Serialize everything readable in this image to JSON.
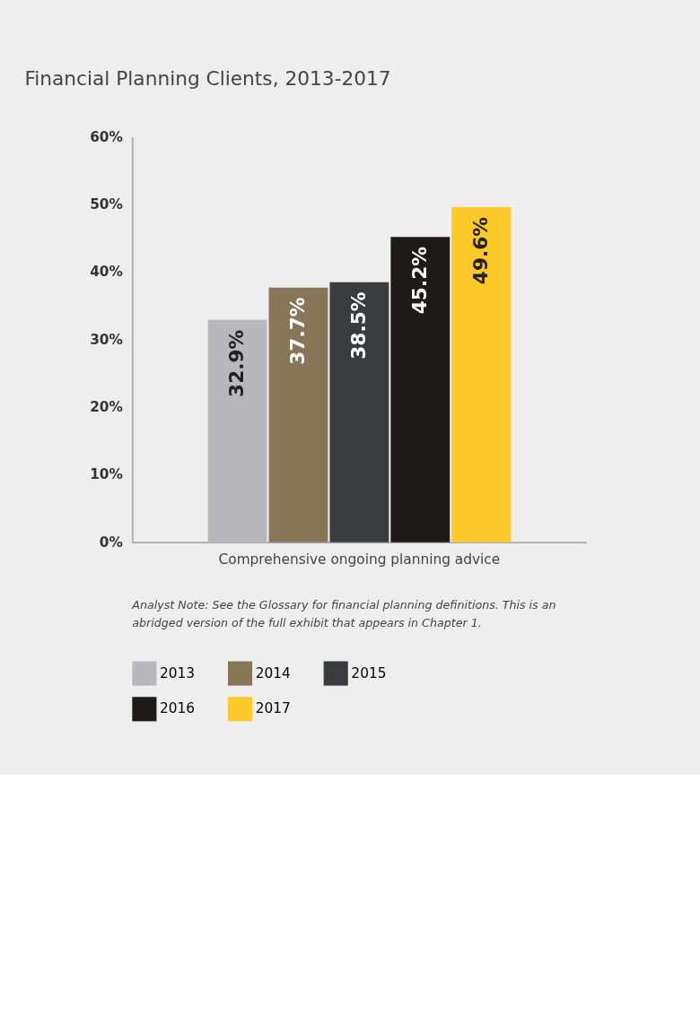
{
  "chart_data": {
    "type": "bar",
    "title": "Financial Planning Clients, 2013-2017",
    "categories": [
      "Comprehensive ongoing planning advice"
    ],
    "series": [
      {
        "name": "2013",
        "color": "#b8b7bb",
        "values": [
          32.9
        ],
        "value_labels": [
          "32.9%"
        ]
      },
      {
        "name": "2014",
        "color": "#877657",
        "values": [
          37.7
        ],
        "value_labels": [
          "37.7%"
        ]
      },
      {
        "name": "2015",
        "color": "#3a3b3e",
        "values": [
          38.5
        ],
        "value_labels": [
          "38.5%"
        ]
      },
      {
        "name": "2016",
        "color": "#1e1a1a",
        "values": [
          45.2
        ],
        "value_labels": [
          "45.2%"
        ]
      },
      {
        "name": "2017",
        "color": "#fdc829",
        "values": [
          49.6
        ],
        "value_labels": [
          "49.6%"
        ]
      }
    ],
    "ylim": [
      0,
      60
    ],
    "yticks": [
      {
        "value": 0,
        "label": "0%"
      },
      {
        "value": 10,
        "label": "10%"
      },
      {
        "value": 20,
        "label": "20%"
      },
      {
        "value": 30,
        "label": "30%"
      },
      {
        "value": 40,
        "label": "40%"
      },
      {
        "value": 50,
        "label": "50%"
      },
      {
        "value": 60,
        "label": "60%"
      }
    ],
    "grid": false,
    "legend": "bottom",
    "annotations": [
      "Analyst Note: See the Glossary for financial planning definitions. This is an abridged version of the full exhibit that appears in Chapter 1."
    ]
  }
}
